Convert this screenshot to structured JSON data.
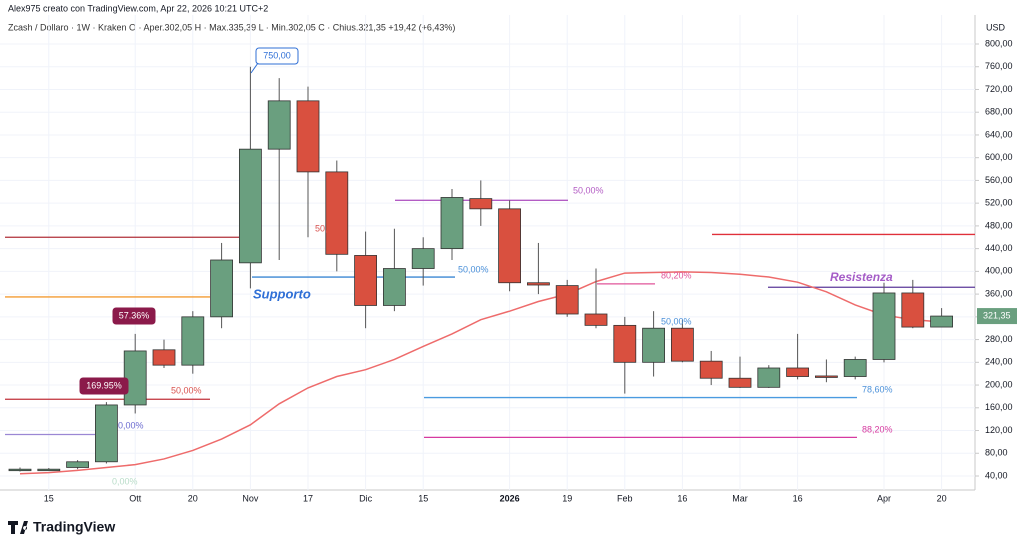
{
  "chart_data": {
    "type": "candlestick",
    "header": "Alex975 creato con TradingView.com, Apr 22, 2026 10:21 UTC+2",
    "title": "Zcash / Dollaro · 1W · Kraken  O · Aper.302,05  H · Max.335,39  L · Min.302,05  C · Chius.321,35  +19,42 (+6,43%)",
    "currency": "USD",
    "brand": "TradingView",
    "categories": [
      null,
      "15",
      null,
      null,
      "Ott",
      null,
      "20",
      null,
      "Nov",
      null,
      "17",
      null,
      "Dic",
      null,
      "15",
      null,
      null,
      "2026",
      null,
      "19",
      null,
      "Feb",
      null,
      "16",
      null,
      "Mar",
      null,
      "16",
      null,
      null,
      "Apr",
      null,
      "20"
    ],
    "open": [
      50,
      52,
      55,
      65,
      165,
      262,
      235,
      320,
      415,
      615,
      700,
      575,
      428,
      340,
      405,
      440,
      528,
      510,
      380,
      375,
      325,
      305,
      240,
      300,
      242,
      212,
      196,
      230,
      216,
      215,
      245,
      362,
      302.05
    ],
    "high": [
      55,
      54,
      68,
      170,
      290,
      280,
      330,
      450,
      760,
      740,
      725,
      595,
      470,
      475,
      460,
      545,
      560,
      525,
      450,
      385,
      405,
      320,
      330,
      315,
      260,
      250,
      235,
      290,
      245,
      250,
      380,
      385,
      335.39
    ],
    "low": [
      48,
      50,
      52,
      62,
      150,
      230,
      220,
      300,
      370,
      420,
      460,
      400,
      300,
      330,
      375,
      420,
      480,
      365,
      360,
      320,
      300,
      185,
      215,
      240,
      200,
      195,
      195,
      210,
      205,
      210,
      240,
      300,
      302.05
    ],
    "close": [
      52,
      52,
      65,
      165,
      260,
      235,
      320,
      420,
      615,
      700,
      575,
      430,
      340,
      405,
      440,
      530,
      510,
      380,
      376,
      325,
      305,
      240,
      300,
      242,
      212,
      196,
      230,
      215,
      214,
      245,
      362,
      302,
      321.35
    ],
    "up_color": "#6a9f7f",
    "down_color": "#d9503f",
    "moving_average": {
      "color": "#ee6b6b",
      "values": [
        44,
        46,
        50,
        55,
        60,
        70,
        85,
        105,
        130,
        167,
        195,
        215,
        227,
        245,
        268,
        290,
        315,
        330,
        347,
        360,
        382,
        397,
        398,
        399,
        398,
        395,
        390,
        381,
        364,
        341,
        323,
        315,
        311
      ]
    },
    "last_price": {
      "value": 321.35,
      "label": "321,35"
    },
    "ylim": [
      20,
      820
    ],
    "yticks": [
      {
        "value": 40,
        "label": "40,00"
      },
      {
        "value": 80,
        "label": "80,00"
      },
      {
        "value": 120,
        "label": "120,00"
      },
      {
        "value": 160,
        "label": "160,00"
      },
      {
        "value": 200,
        "label": "200,00"
      },
      {
        "value": 240,
        "label": "240,00"
      },
      {
        "value": 280,
        "label": "280,00"
      },
      {
        "value": 320,
        "label": "320,00"
      },
      {
        "value": 360,
        "label": "360,00"
      },
      {
        "value": 400,
        "label": "400,00"
      },
      {
        "value": 440,
        "label": "440,00"
      },
      {
        "value": 480,
        "label": "480,00"
      },
      {
        "value": 520,
        "label": "520,00"
      },
      {
        "value": 560,
        "label": "560,00"
      },
      {
        "value": 600,
        "label": "600,00"
      },
      {
        "value": 640,
        "label": "640,00"
      },
      {
        "value": 680,
        "label": "680,00"
      },
      {
        "value": 720,
        "label": "720,00"
      },
      {
        "value": 760,
        "label": "760,00"
      },
      {
        "value": 800,
        "label": "800,00"
      }
    ],
    "grid": true,
    "lines": [
      {
        "value": 460,
        "color": "#b0303a"
      },
      {
        "value": 355,
        "color": "#f39c33"
      },
      {
        "value": 175,
        "color": "#c0303a"
      },
      {
        "value": 113,
        "color": "#9b87d4"
      },
      {
        "value": 390,
        "color": "#3a86d4"
      },
      {
        "value": 525,
        "color": "#b35cc4"
      },
      {
        "value": 378,
        "color": "#e0559a"
      },
      {
        "value": 465,
        "color": "#e0303a"
      },
      {
        "value": 372,
        "color": "#5b3a9a"
      },
      {
        "value": 178,
        "color": "#4a9be0"
      },
      {
        "value": 108,
        "color": "#d63aa0"
      }
    ],
    "annotations": [
      "750,00",
      "57.36%",
      "169.95%",
      "Supporto",
      "Resistenza",
      "50,00%",
      "50,00%",
      "50,00%",
      "80,20%",
      "78,60%",
      "88,20%",
      "50,00%",
      "50,",
      "0,00%",
      "0,00%"
    ]
  }
}
